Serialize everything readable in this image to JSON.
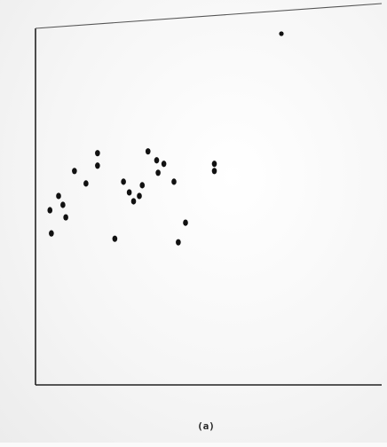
{
  "chart_data": {
    "type": "scatter",
    "title": "",
    "xlabel": "",
    "ylabel": "",
    "xlim": [
      0,
      240
    ],
    "ylim": [
      0,
      200
    ],
    "grid": false,
    "legend": {
      "position": "top-right",
      "entries": [
        {
          "marker": "filled-dot",
          "label": ""
        }
      ]
    },
    "x_ticks": [],
    "y_ticks": [],
    "series": [
      {
        "points": [
          {
            "x": 10,
            "y": 98
          },
          {
            "x": 11,
            "y": 85
          },
          {
            "x": 16,
            "y": 106
          },
          {
            "x": 19,
            "y": 101
          },
          {
            "x": 21,
            "y": 94
          },
          {
            "x": 27,
            "y": 120
          },
          {
            "x": 35,
            "y": 113
          },
          {
            "x": 43,
            "y": 130
          },
          {
            "x": 43,
            "y": 123
          },
          {
            "x": 55,
            "y": 82
          },
          {
            "x": 61,
            "y": 114
          },
          {
            "x": 65,
            "y": 108
          },
          {
            "x": 68,
            "y": 103
          },
          {
            "x": 72,
            "y": 106
          },
          {
            "x": 74,
            "y": 112
          },
          {
            "x": 78,
            "y": 131
          },
          {
            "x": 84,
            "y": 126
          },
          {
            "x": 85,
            "y": 119
          },
          {
            "x": 89,
            "y": 124
          },
          {
            "x": 96,
            "y": 114
          },
          {
            "x": 99,
            "y": 80
          },
          {
            "x": 104,
            "y": 91
          },
          {
            "x": 124,
            "y": 124
          },
          {
            "x": 124,
            "y": 120
          }
        ]
      }
    ]
  },
  "figure": {
    "panel_label": "(a)"
  },
  "colors": {
    "ink": "#222222",
    "marker": "#111111"
  }
}
